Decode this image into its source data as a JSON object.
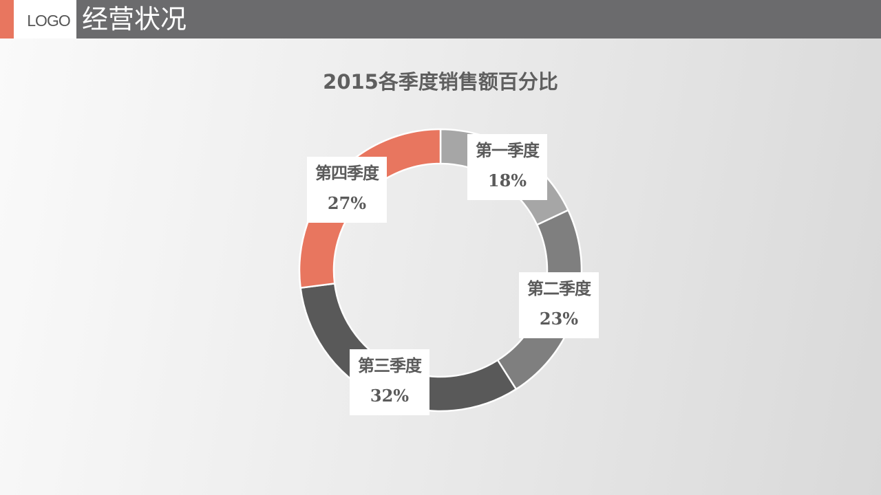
{
  "header": {
    "logo": "LOGO",
    "title": "经营状况",
    "accent_color": "#e8765f",
    "bar_color": "#6b6b6d"
  },
  "chart_data": {
    "type": "pie",
    "variant": "donut",
    "title": "2015各季度销售额百分比",
    "categories": [
      "第一季度",
      "第二季度",
      "第三季度",
      "第四季度"
    ],
    "values": [
      18,
      23,
      32,
      27
    ],
    "labels": [
      "18%",
      "23%",
      "32%",
      "27%"
    ],
    "colors": [
      "#a6a6a6",
      "#7f7f7f",
      "#595959",
      "#e8765f"
    ],
    "start_angle": 0,
    "direction": "clockwise",
    "legend": "none",
    "data_labels": "category name and percentage"
  }
}
